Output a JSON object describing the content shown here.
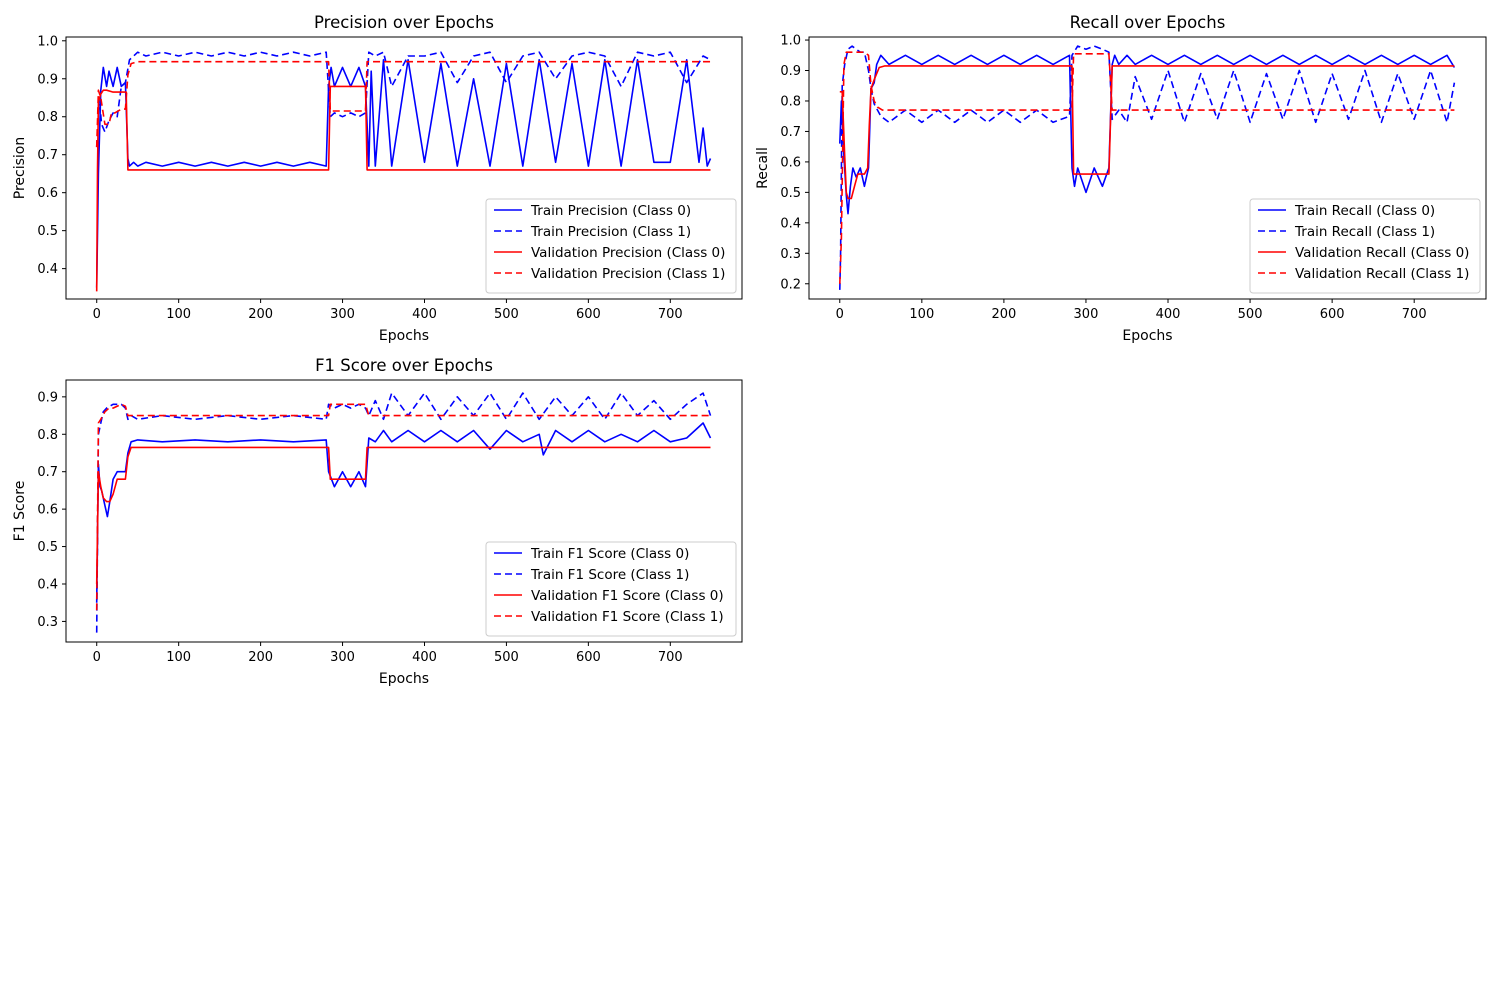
{
  "chart_data": [
    {
      "type": "line",
      "title": "Precision over Epochs",
      "xlabel": "Epochs",
      "ylabel": "Precision",
      "xlim": [
        -37.5,
        787.5
      ],
      "ylim": [
        0.32,
        1.01
      ],
      "xticks": [
        0,
        100,
        200,
        300,
        400,
        500,
        600,
        700
      ],
      "yticks": [
        0.4,
        0.5,
        0.6,
        0.7,
        0.8,
        0.9,
        1.0
      ],
      "grid": false,
      "legend_position": "lower right",
      "series": [
        {
          "name": "Train Precision (Class 0)",
          "color": "#0000ff",
          "dash": "solid",
          "x": [
            0,
            2,
            5,
            8,
            12,
            15,
            20,
            25,
            30,
            35,
            38,
            40,
            45,
            50,
            60,
            80,
            100,
            120,
            140,
            160,
            180,
            200,
            220,
            240,
            260,
            280,
            283,
            286,
            290,
            300,
            310,
            320,
            328,
            332,
            335,
            340,
            350,
            360,
            380,
            400,
            420,
            440,
            460,
            480,
            500,
            520,
            540,
            560,
            580,
            600,
            620,
            640,
            660,
            680,
            700,
            720,
            735,
            740,
            745,
            749
          ],
          "y": [
            0.35,
            0.65,
            0.87,
            0.93,
            0.88,
            0.92,
            0.88,
            0.93,
            0.88,
            0.89,
            0.69,
            0.67,
            0.68,
            0.67,
            0.68,
            0.67,
            0.68,
            0.67,
            0.68,
            0.67,
            0.68,
            0.67,
            0.68,
            0.67,
            0.68,
            0.67,
            0.88,
            0.93,
            0.88,
            0.93,
            0.88,
            0.93,
            0.88,
            0.67,
            0.92,
            0.67,
            0.95,
            0.67,
            0.95,
            0.68,
            0.94,
            0.67,
            0.9,
            0.67,
            0.94,
            0.67,
            0.95,
            0.68,
            0.94,
            0.67,
            0.95,
            0.67,
            0.95,
            0.68,
            0.68,
            0.95,
            0.68,
            0.77,
            0.67,
            0.69
          ]
        },
        {
          "name": "Train Precision (Class 1)",
          "color": "#0000ff",
          "dash": "dashed",
          "x": [
            0,
            3,
            6,
            10,
            15,
            20,
            25,
            30,
            35,
            40,
            50,
            60,
            80,
            100,
            120,
            140,
            160,
            180,
            200,
            220,
            240,
            260,
            280,
            285,
            290,
            300,
            310,
            320,
            328,
            332,
            340,
            350,
            360,
            380,
            400,
            420,
            440,
            460,
            480,
            500,
            520,
            540,
            560,
            580,
            600,
            620,
            640,
            660,
            680,
            700,
            720,
            740,
            749
          ],
          "y": [
            0.72,
            0.85,
            0.78,
            0.76,
            0.79,
            0.81,
            0.8,
            0.88,
            0.89,
            0.95,
            0.97,
            0.96,
            0.97,
            0.96,
            0.97,
            0.96,
            0.97,
            0.96,
            0.97,
            0.96,
            0.97,
            0.96,
            0.97,
            0.8,
            0.81,
            0.8,
            0.81,
            0.8,
            0.81,
            0.97,
            0.96,
            0.97,
            0.88,
            0.96,
            0.96,
            0.97,
            0.89,
            0.96,
            0.97,
            0.89,
            0.96,
            0.97,
            0.9,
            0.96,
            0.97,
            0.96,
            0.88,
            0.97,
            0.96,
            0.97,
            0.89,
            0.96,
            0.95
          ]
        },
        {
          "name": "Validation Precision (Class 0)",
          "color": "#ff0000",
          "dash": "solid",
          "x": [
            0,
            1,
            2,
            5,
            8,
            12,
            20,
            30,
            36,
            38,
            283,
            285,
            328,
            330,
            749
          ],
          "y": [
            0.34,
            0.66,
            0.84,
            0.86,
            0.87,
            0.87,
            0.865,
            0.865,
            0.865,
            0.66,
            0.66,
            0.88,
            0.88,
            0.66,
            0.66
          ]
        },
        {
          "name": "Validation Precision (Class 1)",
          "color": "#ff0000",
          "dash": "dashed",
          "x": [
            0,
            2,
            5,
            10,
            15,
            18,
            22,
            30,
            35,
            38,
            42,
            50,
            283,
            285,
            328,
            330,
            749
          ],
          "y": [
            0.72,
            0.87,
            0.85,
            0.78,
            0.78,
            0.81,
            0.81,
            0.82,
            0.82,
            0.91,
            0.94,
            0.945,
            0.945,
            0.815,
            0.815,
            0.945,
            0.945
          ]
        }
      ]
    },
    {
      "type": "line",
      "title": "Recall over Epochs",
      "xlabel": "Epochs",
      "ylabel": "Recall",
      "xlim": [
        -37.5,
        787.5
      ],
      "ylim": [
        0.15,
        1.01
      ],
      "xticks": [
        0,
        100,
        200,
        300,
        400,
        500,
        600,
        700
      ],
      "yticks": [
        0.2,
        0.3,
        0.4,
        0.5,
        0.6,
        0.7,
        0.8,
        0.9,
        1.0
      ],
      "grid": false,
      "legend_position": "lower right",
      "series": [
        {
          "name": "Train Recall (Class 0)",
          "color": "#0000ff",
          "dash": "solid",
          "x": [
            0,
            2,
            5,
            8,
            10,
            13,
            16,
            20,
            25,
            30,
            35,
            38,
            42,
            45,
            50,
            60,
            80,
            100,
            120,
            140,
            160,
            180,
            200,
            220,
            240,
            260,
            280,
            283,
            286,
            290,
            300,
            310,
            320,
            328,
            332,
            335,
            340,
            350,
            360,
            380,
            400,
            420,
            440,
            460,
            480,
            500,
            520,
            540,
            560,
            580,
            600,
            620,
            640,
            660,
            680,
            700,
            720,
            740,
            749
          ],
          "y": [
            0.66,
            0.8,
            0.62,
            0.49,
            0.43,
            0.52,
            0.58,
            0.55,
            0.58,
            0.52,
            0.58,
            0.84,
            0.86,
            0.92,
            0.95,
            0.92,
            0.95,
            0.92,
            0.95,
            0.92,
            0.95,
            0.92,
            0.95,
            0.92,
            0.95,
            0.92,
            0.95,
            0.58,
            0.52,
            0.58,
            0.5,
            0.58,
            0.52,
            0.58,
            0.92,
            0.95,
            0.92,
            0.95,
            0.92,
            0.95,
            0.92,
            0.95,
            0.92,
            0.95,
            0.92,
            0.95,
            0.92,
            0.95,
            0.92,
            0.95,
            0.92,
            0.95,
            0.92,
            0.95,
            0.92,
            0.95,
            0.92,
            0.95,
            0.91
          ]
        },
        {
          "name": "Train Recall (Class 1)",
          "color": "#0000ff",
          "dash": "dashed",
          "x": [
            0,
            1,
            3,
            6,
            10,
            15,
            20,
            25,
            30,
            35,
            38,
            42,
            50,
            60,
            80,
            100,
            120,
            140,
            160,
            180,
            200,
            220,
            240,
            260,
            280,
            283,
            290,
            300,
            310,
            320,
            328,
            332,
            340,
            350,
            360,
            380,
            400,
            420,
            440,
            460,
            480,
            500,
            520,
            540,
            560,
            580,
            600,
            620,
            640,
            660,
            680,
            700,
            720,
            740,
            749
          ],
          "y": [
            0.18,
            0.3,
            0.85,
            0.92,
            0.97,
            0.98,
            0.97,
            0.96,
            0.96,
            0.9,
            0.84,
            0.79,
            0.75,
            0.73,
            0.77,
            0.73,
            0.77,
            0.73,
            0.77,
            0.73,
            0.77,
            0.73,
            0.77,
            0.73,
            0.75,
            0.95,
            0.98,
            0.97,
            0.98,
            0.97,
            0.96,
            0.74,
            0.77,
            0.73,
            0.88,
            0.74,
            0.9,
            0.73,
            0.89,
            0.74,
            0.9,
            0.73,
            0.89,
            0.74,
            0.9,
            0.73,
            0.89,
            0.74,
            0.9,
            0.73,
            0.89,
            0.74,
            0.9,
            0.73,
            0.86
          ]
        },
        {
          "name": "Validation Recall (Class 0)",
          "color": "#ff0000",
          "dash": "solid",
          "x": [
            0,
            3,
            6,
            8,
            10,
            14,
            18,
            22,
            26,
            30,
            34,
            36,
            38,
            42,
            48,
            55,
            283,
            285,
            328,
            332,
            749
          ],
          "y": [
            0.83,
            0.83,
            0.62,
            0.5,
            0.48,
            0.48,
            0.52,
            0.56,
            0.56,
            0.56,
            0.58,
            0.72,
            0.84,
            0.87,
            0.91,
            0.915,
            0.915,
            0.56,
            0.56,
            0.915,
            0.915
          ]
        },
        {
          "name": "Validation Recall (Class 1)",
          "color": "#ff0000",
          "dash": "dashed",
          "x": [
            0,
            2,
            5,
            8,
            12,
            20,
            30,
            35,
            38,
            42,
            46,
            52,
            283,
            285,
            328,
            332,
            749
          ],
          "y": [
            0.2,
            0.35,
            0.92,
            0.96,
            0.96,
            0.96,
            0.96,
            0.95,
            0.85,
            0.8,
            0.78,
            0.77,
            0.77,
            0.955,
            0.955,
            0.77,
            0.77
          ]
        }
      ]
    },
    {
      "type": "line",
      "title": "F1 Score over Epochs",
      "xlabel": "Epochs",
      "ylabel": "F1 Score",
      "xlim": [
        -37.5,
        787.5
      ],
      "ylim": [
        0.245,
        0.945
      ],
      "xticks": [
        0,
        100,
        200,
        300,
        400,
        500,
        600,
        700
      ],
      "yticks": [
        0.3,
        0.4,
        0.5,
        0.6,
        0.7,
        0.8,
        0.9
      ],
      "grid": false,
      "legend_position": "lower right",
      "series": [
        {
          "name": "Train F1 Score (Class 0)",
          "color": "#0000ff",
          "dash": "solid",
          "x": [
            0,
            2,
            4,
            6,
            10,
            13,
            16,
            20,
            25,
            30,
            35,
            38,
            42,
            50,
            80,
            120,
            160,
            200,
            240,
            280,
            283,
            290,
            300,
            310,
            320,
            328,
            332,
            340,
            350,
            360,
            380,
            400,
            420,
            440,
            460,
            480,
            500,
            520,
            540,
            545,
            560,
            580,
            600,
            620,
            640,
            660,
            680,
            700,
            720,
            740,
            749
          ],
          "y": [
            0.35,
            0.72,
            0.66,
            0.65,
            0.61,
            0.58,
            0.62,
            0.68,
            0.7,
            0.7,
            0.7,
            0.75,
            0.78,
            0.785,
            0.78,
            0.785,
            0.78,
            0.785,
            0.78,
            0.785,
            0.7,
            0.66,
            0.7,
            0.66,
            0.7,
            0.66,
            0.79,
            0.78,
            0.81,
            0.78,
            0.81,
            0.78,
            0.81,
            0.78,
            0.81,
            0.76,
            0.81,
            0.78,
            0.8,
            0.745,
            0.81,
            0.78,
            0.81,
            0.78,
            0.8,
            0.78,
            0.81,
            0.78,
            0.79,
            0.83,
            0.79
          ]
        },
        {
          "name": "Train F1 Score (Class 1)",
          "color": "#0000ff",
          "dash": "dashed",
          "x": [
            0,
            2,
            5,
            8,
            12,
            20,
            30,
            35,
            38,
            42,
            50,
            80,
            120,
            160,
            200,
            240,
            280,
            283,
            290,
            300,
            310,
            320,
            328,
            332,
            340,
            350,
            360,
            380,
            400,
            420,
            440,
            460,
            480,
            500,
            520,
            540,
            560,
            580,
            600,
            620,
            640,
            660,
            680,
            700,
            720,
            740,
            749
          ],
          "y": [
            0.27,
            0.8,
            0.83,
            0.86,
            0.87,
            0.88,
            0.88,
            0.87,
            0.84,
            0.85,
            0.84,
            0.85,
            0.84,
            0.85,
            0.84,
            0.85,
            0.84,
            0.88,
            0.87,
            0.88,
            0.87,
            0.88,
            0.87,
            0.85,
            0.89,
            0.84,
            0.91,
            0.85,
            0.91,
            0.84,
            0.9,
            0.85,
            0.91,
            0.84,
            0.91,
            0.84,
            0.9,
            0.85,
            0.9,
            0.84,
            0.91,
            0.85,
            0.89,
            0.84,
            0.88,
            0.91,
            0.85
          ]
        },
        {
          "name": "Validation F1 Score (Class 0)",
          "color": "#ff0000",
          "dash": "solid",
          "x": [
            0,
            2,
            5,
            8,
            12,
            16,
            20,
            25,
            30,
            35,
            38,
            42,
            283,
            285,
            328,
            330,
            749
          ],
          "y": [
            0.4,
            0.7,
            0.66,
            0.63,
            0.62,
            0.62,
            0.64,
            0.68,
            0.68,
            0.68,
            0.74,
            0.765,
            0.765,
            0.68,
            0.68,
            0.765,
            0.765
          ]
        },
        {
          "name": "Validation F1 Score (Class 1)",
          "color": "#ff0000",
          "dash": "dashed",
          "x": [
            0,
            2,
            5,
            10,
            15,
            20,
            30,
            35,
            38,
            42,
            283,
            285,
            328,
            332,
            749
          ],
          "y": [
            0.33,
            0.83,
            0.84,
            0.86,
            0.87,
            0.87,
            0.88,
            0.875,
            0.85,
            0.85,
            0.85,
            0.88,
            0.88,
            0.85,
            0.85
          ]
        }
      ]
    }
  ]
}
